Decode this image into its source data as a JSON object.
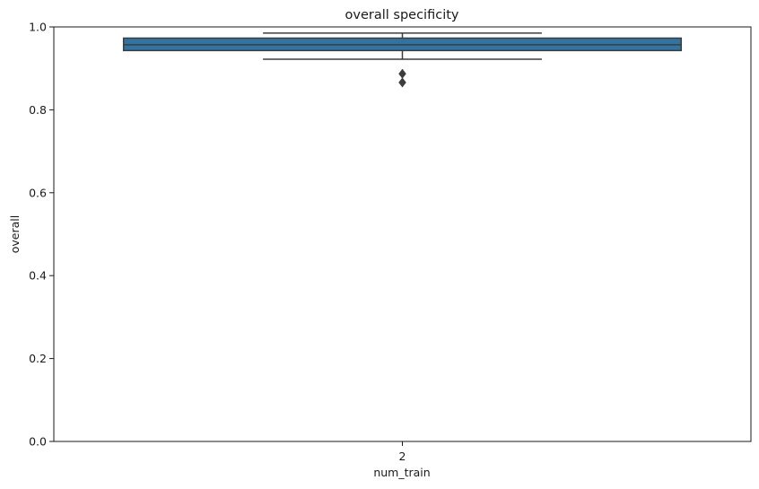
{
  "chart_data": {
    "type": "box",
    "title": "overall specificity",
    "xlabel": "num_train",
    "ylabel": "overall",
    "categories": [
      "2"
    ],
    "ylim": [
      0.0,
      1.0
    ],
    "yticks": [
      "0.0",
      "0.2",
      "0.4",
      "0.6",
      "0.8",
      "1.0"
    ],
    "ytick_values": [
      0.0,
      0.2,
      0.4,
      0.6,
      0.8,
      1.0
    ],
    "boxes": [
      {
        "category": "2",
        "q1": 0.943,
        "median": 0.957,
        "q3": 0.973,
        "whisker_low": 0.922,
        "whisker_high": 0.985,
        "outliers": [
          0.887,
          0.866
        ]
      }
    ],
    "box_color": "#3274a1",
    "edge_color": "#3d3d3d",
    "grid": false
  }
}
